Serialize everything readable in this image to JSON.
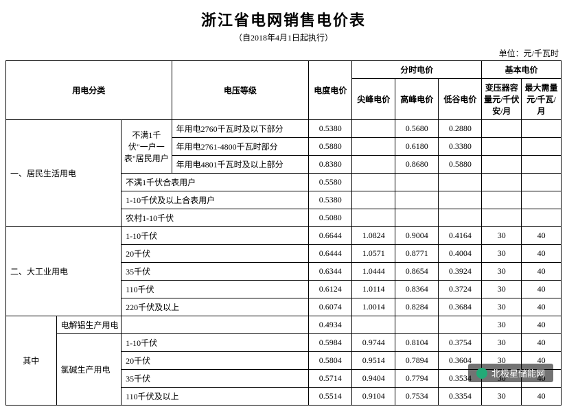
{
  "title": "浙江省电网销售电价表",
  "subtitle": "（自2018年4月1日起执行）",
  "unit": "单位：元/千瓦时",
  "headers": {
    "cat": "用电分类",
    "voltage": "电压等级",
    "energy": "电度电价",
    "tou": "分时电价",
    "basic": "基本电价",
    "peak_sharp": "尖峰电价",
    "peak_high": "高峰电价",
    "valley": "低谷电价",
    "trans_cap": "变压器容量元/千伏安/月",
    "max_demand": "最大需量元/千瓦/月"
  },
  "sections": {
    "residential": {
      "label": "一、居民生活用电",
      "meter_group": "不满1千伏\"一户一表\"居民用户",
      "rows": [
        {
          "desc": "年用电2760千瓦时及以下部分",
          "energy": "0.5380",
          "sharp": "",
          "high": "0.5680",
          "valley": "0.2880",
          "cap": "",
          "dem": ""
        },
        {
          "desc": "年用电2761-4800千瓦时部分",
          "energy": "0.5880",
          "sharp": "",
          "high": "0.6180",
          "valley": "0.3380",
          "cap": "",
          "dem": ""
        },
        {
          "desc": "年用电4801千瓦时及以上部分",
          "energy": "0.8380",
          "sharp": "",
          "high": "0.8680",
          "valley": "0.5880",
          "cap": "",
          "dem": ""
        }
      ],
      "other_rows": [
        {
          "desc": "不满1千伏合表用户",
          "energy": "0.5580"
        },
        {
          "desc": "1-10千伏及以上合表用户",
          "energy": "0.5380"
        },
        {
          "desc": "农村1-10千伏",
          "energy": "0.5080"
        }
      ]
    },
    "industrial": {
      "label": "二、大工业用电",
      "rows": [
        {
          "desc": "1-10千伏",
          "energy": "0.6644",
          "sharp": "1.0824",
          "high": "0.9004",
          "valley": "0.4164",
          "cap": "30",
          "dem": "40"
        },
        {
          "desc": "20千伏",
          "energy": "0.6444",
          "sharp": "1.0571",
          "high": "0.8771",
          "valley": "0.4004",
          "cap": "30",
          "dem": "40"
        },
        {
          "desc": "35千伏",
          "energy": "0.6344",
          "sharp": "1.0444",
          "high": "0.8654",
          "valley": "0.3924",
          "cap": "30",
          "dem": "40"
        },
        {
          "desc": "110千伏",
          "energy": "0.6124",
          "sharp": "1.0114",
          "high": "0.8364",
          "valley": "0.3724",
          "cap": "30",
          "dem": "40"
        },
        {
          "desc": "220千伏及以上",
          "energy": "0.6074",
          "sharp": "1.0014",
          "high": "0.8284",
          "valley": "0.3684",
          "cap": "30",
          "dem": "40"
        }
      ]
    },
    "sub": {
      "label": "其中",
      "aluminum": {
        "label": "电解铝生产用电",
        "energy": "0.4934",
        "cap": "30",
        "dem": "40"
      },
      "chlor": {
        "label": "氯碱生产用电",
        "rows": [
          {
            "desc": "1-10千伏",
            "energy": "0.5984",
            "sharp": "0.9744",
            "high": "0.8104",
            "valley": "0.3754",
            "cap": "30",
            "dem": "40"
          },
          {
            "desc": "20千伏",
            "energy": "0.5804",
            "sharp": "0.9514",
            "high": "0.7894",
            "valley": "0.3604",
            "cap": "30",
            "dem": "40"
          },
          {
            "desc": "35千伏",
            "energy": "0.5714",
            "sharp": "0.9404",
            "high": "0.7794",
            "valley": "0.3534",
            "cap": "30",
            "dem": "40"
          },
          {
            "desc": "110千伏及以上",
            "energy": "0.5514",
            "sharp": "0.9104",
            "high": "0.7534",
            "valley": "0.3354",
            "cap": "30",
            "dem": "40"
          }
        ]
      }
    }
  },
  "watermark": "北极星储能网",
  "colors": {
    "border": "#000000",
    "bg": "#ffffff",
    "wm_bg": "rgba(0,0,0,0.55)"
  }
}
